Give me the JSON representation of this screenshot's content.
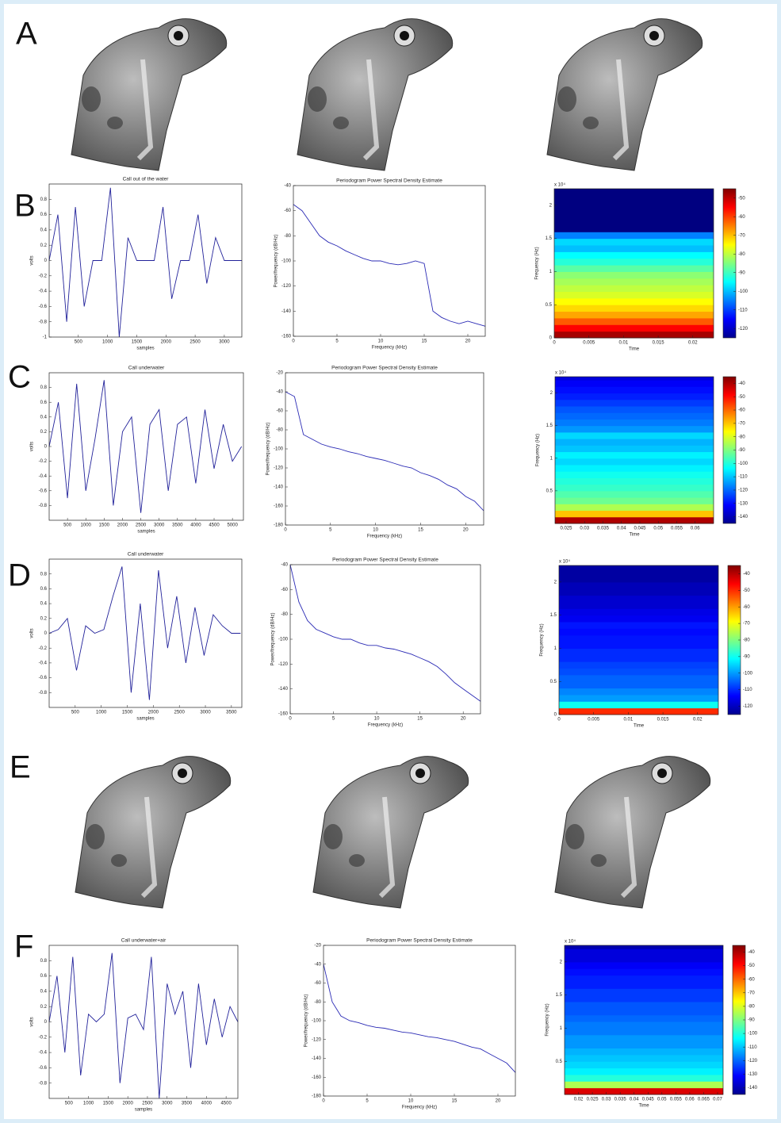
{
  "panel_labels": [
    "A",
    "B",
    "C",
    "D",
    "E",
    "F"
  ],
  "chart_data": [
    {
      "type": "line",
      "title": "Call out of the water",
      "xlabel": "samples",
      "ylabel": "volts",
      "color": "#22229a",
      "x": [
        0,
        150,
        300,
        450,
        600,
        750,
        900,
        1050,
        1200,
        1350,
        1500,
        1650,
        1800,
        1950,
        2100,
        2250,
        2400,
        2550,
        2700,
        2850,
        3000,
        3150,
        3300
      ],
      "values": [
        0,
        0.6,
        -0.8,
        0.7,
        -0.6,
        0,
        0,
        0.95,
        -1,
        0.3,
        0,
        0,
        0,
        0.7,
        -0.5,
        0,
        0,
        0.6,
        -0.3,
        0.3,
        0,
        0,
        0
      ],
      "xlim": [
        0,
        3300
      ],
      "ylim": [
        -1,
        1
      ],
      "xticks": [
        500,
        1000,
        1500,
        2000,
        2500,
        3000
      ],
      "yticks": [
        -1,
        -0.8,
        -0.6,
        -0.4,
        -0.2,
        0,
        0.2,
        0.4,
        0.6,
        0.8
      ]
    },
    {
      "type": "line",
      "title": "Periodogram Power Spectral Density Estimate",
      "xlabel": "Frequency (kHz)",
      "ylabel": "Power/frequency (dB/Hz)",
      "color": "#2b2bb5",
      "x": [
        0,
        1,
        2,
        3,
        4,
        5,
        6,
        7,
        8,
        9,
        10,
        11,
        12,
        13,
        14,
        15,
        16,
        17,
        18,
        19,
        20,
        21,
        22
      ],
      "values": [
        -55,
        -60,
        -70,
        -80,
        -85,
        -88,
        -92,
        -95,
        -98,
        -100,
        -100,
        -102,
        -103,
        -102,
        -100,
        -102,
        -140,
        -145,
        -148,
        -150,
        -148,
        -150,
        -152
      ],
      "xlim": [
        0,
        22
      ],
      "ylim": [
        -160,
        -40
      ],
      "xticks": [
        0,
        5,
        10,
        15,
        20
      ],
      "yticks": [
        -160,
        -140,
        -120,
        -100,
        -80,
        -60,
        -40
      ]
    },
    {
      "type": "heatmap",
      "xlabel": "Time",
      "ylabel": "Frequency (Hz)",
      "yexponent": "x 10⁴",
      "y": [
        0,
        0.1,
        0.2,
        0.3,
        0.4,
        0.5,
        0.6,
        0.7,
        0.8,
        0.9,
        1,
        1.1,
        1.2,
        1.3,
        1.4,
        1.5,
        1.6,
        1.7,
        1.8,
        1.9,
        2,
        2.1,
        2.2
      ],
      "values": [
        -48,
        -55,
        -62,
        -68,
        -72,
        -75,
        -78,
        -80,
        -82,
        -84,
        -88,
        -92,
        -95,
        -100,
        -98,
        -105,
        -125,
        -125,
        -125,
        -125,
        -125,
        -125,
        -125
      ],
      "xlim": [
        0,
        0.023
      ],
      "ylim": [
        0,
        2.25
      ],
      "xticks": [
        0,
        0.005,
        0.01,
        0.015,
        0.02
      ],
      "yticks": [
        0,
        0.5,
        1,
        1.5,
        2
      ],
      "clim": [
        -125,
        -45
      ],
      "cticks": [
        -120,
        -110,
        -100,
        -90,
        -80,
        -70,
        -60,
        -50
      ]
    },
    {
      "type": "line",
      "title": "Call underwater",
      "xlabel": "samples",
      "ylabel": "volts",
      "color": "#22229a",
      "x": [
        0,
        250,
        500,
        750,
        1000,
        1250,
        1500,
        1750,
        2000,
        2250,
        2500,
        2750,
        3000,
        3250,
        3500,
        3750,
        4000,
        4250,
        4500,
        4750,
        5000,
        5250
      ],
      "values": [
        0,
        0.6,
        -0.7,
        0.85,
        -0.6,
        0.1,
        0.9,
        -0.8,
        0.2,
        0.4,
        -0.9,
        0.3,
        0.5,
        -0.6,
        0.3,
        0.4,
        -0.5,
        0.5,
        -0.3,
        0.3,
        -0.2,
        0
      ],
      "xlim": [
        0,
        5300
      ],
      "ylim": [
        -1,
        1
      ],
      "xticks": [
        500,
        1000,
        1500,
        2000,
        2500,
        3000,
        3500,
        4000,
        4500,
        5000
      ],
      "yticks": [
        -0.8,
        -0.6,
        -0.4,
        -0.2,
        0,
        0.2,
        0.4,
        0.6,
        0.8
      ]
    },
    {
      "type": "line",
      "title": "Periodogram Power Spectral Density Estimate",
      "xlabel": "Frequency (kHz)",
      "ylabel": "Power/frequency (dB/Hz)",
      "color": "#2b2bb5",
      "x": [
        0,
        1,
        2,
        3,
        4,
        5,
        6,
        7,
        8,
        9,
        10,
        11,
        12,
        13,
        14,
        15,
        16,
        17,
        18,
        19,
        20,
        21,
        22
      ],
      "values": [
        -40,
        -45,
        -85,
        -90,
        -95,
        -98,
        -100,
        -103,
        -105,
        -108,
        -110,
        -112,
        -115,
        -118,
        -120,
        -125,
        -128,
        -132,
        -138,
        -142,
        -150,
        -155,
        -165
      ],
      "xlim": [
        0,
        22
      ],
      "ylim": [
        -180,
        -20
      ],
      "xticks": [
        0,
        5,
        10,
        15,
        20
      ],
      "yticks": [
        -180,
        -160,
        -140,
        -120,
        -100,
        -80,
        -60,
        -40,
        -20
      ]
    },
    {
      "type": "heatmap",
      "xlabel": "Time",
      "ylabel": "Frequency (Hz)",
      "yexponent": "x 10⁴",
      "y": [
        0,
        0.1,
        0.2,
        0.3,
        0.4,
        0.5,
        0.6,
        0.7,
        0.8,
        0.9,
        1,
        1.1,
        1.2,
        1.3,
        1.4,
        1.5,
        1.6,
        1.7,
        1.8,
        1.9,
        2,
        2.1,
        2.2
      ],
      "values": [
        -40,
        -70,
        -85,
        -92,
        -95,
        -98,
        -100,
        -102,
        -105,
        -108,
        -105,
        -110,
        -112,
        -108,
        -115,
        -118,
        -120,
        -122,
        -125,
        -128,
        -130,
        -132,
        -135
      ],
      "xlim": [
        0.022,
        0.065
      ],
      "ylim": [
        0,
        2.25
      ],
      "xticks": [
        0.025,
        0.03,
        0.035,
        0.04,
        0.045,
        0.05,
        0.055,
        0.06
      ],
      "yticks": [
        0.5,
        1,
        1.5,
        2
      ],
      "clim": [
        -145,
        -35
      ],
      "cticks": [
        -140,
        -130,
        -120,
        -110,
        -100,
        -90,
        -80,
        -70,
        -60,
        -50,
        -40
      ]
    },
    {
      "type": "line",
      "title": "Call underwater",
      "xlabel": "samples",
      "ylabel": "volts",
      "color": "#22229a",
      "x": [
        0,
        175,
        350,
        525,
        700,
        875,
        1050,
        1225,
        1400,
        1575,
        1750,
        1925,
        2100,
        2275,
        2450,
        2625,
        2800,
        2975,
        3150,
        3325,
        3500,
        3675
      ],
      "values": [
        0,
        0.05,
        0.2,
        -0.5,
        0.1,
        0,
        0.05,
        0.5,
        0.9,
        -0.8,
        0.4,
        -0.9,
        0.85,
        -0.2,
        0.5,
        -0.4,
        0.35,
        -0.3,
        0.25,
        0.1,
        0,
        0
      ],
      "xlim": [
        0,
        3700
      ],
      "ylim": [
        -1,
        1
      ],
      "xticks": [
        500,
        1000,
        1500,
        2000,
        2500,
        3000,
        3500
      ],
      "yticks": [
        -0.8,
        -0.6,
        -0.4,
        -0.2,
        0,
        0.2,
        0.4,
        0.6,
        0.8
      ]
    },
    {
      "type": "line",
      "title": "Periodogram Power Spectral Density Estimate",
      "xlabel": "Frequency (kHz)",
      "ylabel": "Power/frequency (dB/Hz)",
      "color": "#2b2bb5",
      "x": [
        0,
        1,
        2,
        3,
        4,
        5,
        6,
        7,
        8,
        9,
        10,
        11,
        12,
        13,
        14,
        15,
        16,
        17,
        18,
        19,
        20,
        21,
        22
      ],
      "values": [
        -40,
        -70,
        -85,
        -92,
        -95,
        -98,
        -100,
        -100,
        -103,
        -105,
        -105,
        -107,
        -108,
        -110,
        -112,
        -115,
        -118,
        -122,
        -128,
        -135,
        -140,
        -145,
        -150
      ],
      "xlim": [
        0,
        22
      ],
      "ylim": [
        -160,
        -40
      ],
      "xticks": [
        0,
        5,
        10,
        15,
        20
      ],
      "yticks": [
        -160,
        -140,
        -120,
        -100,
        -80,
        -60,
        -40
      ]
    },
    {
      "type": "heatmap",
      "xlabel": "Time",
      "ylabel": "Frequency (Hz)",
      "yexponent": "x 10⁴",
      "y": [
        0,
        0.1,
        0.2,
        0.3,
        0.4,
        0.5,
        0.6,
        0.7,
        0.8,
        0.9,
        1,
        1.1,
        1.2,
        1.3,
        1.4,
        1.5,
        1.6,
        1.7,
        1.8,
        1.9,
        2,
        2.1,
        2.2
      ],
      "values": [
        -50,
        -90,
        -100,
        -102,
        -105,
        -105,
        -107,
        -108,
        -110,
        -110,
        -112,
        -112,
        -113,
        -112,
        -115,
        -116,
        -118,
        -118,
        -120,
        -120,
        -122,
        -122,
        -122
      ],
      "xlim": [
        0,
        0.023
      ],
      "ylim": [
        0,
        2.25
      ],
      "xticks": [
        0,
        0.005,
        0.01,
        0.015,
        0.02
      ],
      "yticks": [
        0,
        0.5,
        1,
        1.5,
        2
      ],
      "clim": [
        -125,
        -35
      ],
      "cticks": [
        -120,
        -110,
        -100,
        -90,
        -80,
        -70,
        -60,
        -50,
        -40
      ]
    },
    {
      "type": "line",
      "title": "Call underwater+air",
      "xlabel": "samples",
      "ylabel": "volts",
      "color": "#22229a",
      "x": [
        0,
        200,
        400,
        600,
        800,
        1000,
        1200,
        1400,
        1600,
        1800,
        2000,
        2200,
        2400,
        2600,
        2800,
        3000,
        3200,
        3400,
        3600,
        3800,
        4000,
        4200,
        4400,
        4600,
        4800
      ],
      "values": [
        0,
        0.6,
        -0.4,
        0.85,
        -0.7,
        0.1,
        0,
        0.1,
        0.9,
        -0.8,
        0.05,
        0.1,
        -0.1,
        0.85,
        -1,
        0.5,
        0.1,
        0.4,
        -0.6,
        0.5,
        -0.3,
        0.3,
        -0.2,
        0.2,
        0
      ],
      "xlim": [
        0,
        4800
      ],
      "ylim": [
        -1,
        1
      ],
      "xticks": [
        500,
        1000,
        1500,
        2000,
        2500,
        3000,
        3500,
        4000,
        4500
      ],
      "yticks": [
        -0.8,
        -0.6,
        -0.4,
        -0.2,
        0,
        0.2,
        0.4,
        0.6,
        0.8
      ]
    },
    {
      "type": "line",
      "title": "Periodogram Power Spectral Density Estimate",
      "xlabel": "Frequency (kHz)",
      "ylabel": "Power/frequency (dB/Hz)",
      "color": "#2b2bb5",
      "x": [
        0,
        1,
        2,
        3,
        4,
        5,
        6,
        7,
        8,
        9,
        10,
        11,
        12,
        13,
        14,
        15,
        16,
        17,
        18,
        19,
        20,
        21,
        22
      ],
      "values": [
        -40,
        -80,
        -95,
        -100,
        -102,
        -105,
        -107,
        -108,
        -110,
        -112,
        -113,
        -115,
        -117,
        -118,
        -120,
        -122,
        -125,
        -128,
        -130,
        -135,
        -140,
        -145,
        -155
      ],
      "xlim": [
        0,
        22
      ],
      "ylim": [
        -180,
        -20
      ],
      "xticks": [
        0,
        5,
        10,
        15,
        20
      ],
      "yticks": [
        -180,
        -160,
        -140,
        -120,
        -100,
        -80,
        -60,
        -40,
        -20
      ]
    },
    {
      "type": "heatmap",
      "xlabel": "Time",
      "ylabel": "Frequency (Hz)",
      "yexponent": "x 10⁴",
      "y": [
        0,
        0.1,
        0.2,
        0.3,
        0.4,
        0.5,
        0.6,
        0.7,
        0.8,
        0.9,
        1,
        1.1,
        1.2,
        1.3,
        1.4,
        1.5,
        1.6,
        1.7,
        1.8,
        1.9,
        2,
        2.1,
        2.2
      ],
      "values": [
        -45,
        -85,
        -100,
        -105,
        -108,
        -110,
        -112,
        -115,
        -115,
        -118,
        -118,
        -120,
        -122,
        -122,
        -125,
        -125,
        -128,
        -128,
        -130,
        -132,
        -135,
        -135,
        -140
      ],
      "xlim": [
        0.015,
        0.072
      ],
      "ylim": [
        0,
        2.25
      ],
      "xticks": [
        0.02,
        0.025,
        0.03,
        0.035,
        0.04,
        0.045,
        0.05,
        0.055,
        0.06,
        0.065,
        0.07
      ],
      "yticks": [
        0.5,
        1,
        1.5,
        2
      ],
      "clim": [
        -145,
        -35
      ],
      "cticks": [
        -140,
        -130,
        -120,
        -110,
        -100,
        -90,
        -80,
        -70,
        -60,
        -50,
        -40
      ]
    }
  ]
}
